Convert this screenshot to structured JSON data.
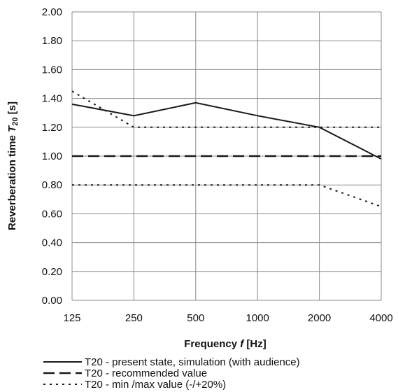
{
  "chart_data": {
    "type": "line",
    "categories": [
      "125",
      "250",
      "500",
      "1000",
      "2000",
      "4000"
    ],
    "ylim": [
      0,
      2.0
    ],
    "yticks": [
      "0.00",
      "0.20",
      "0.40",
      "0.60",
      "0.80",
      "1.00",
      "1.20",
      "1.40",
      "1.60",
      "1.80",
      "2.00"
    ],
    "grid": true,
    "legend_position": "bottom",
    "xlabel": {
      "prefix": "Frequency ",
      "var": "f",
      "suffix": " [Hz]"
    },
    "ylabel": {
      "prefix": "Reverberation time  ",
      "var": "T",
      "sub": "20",
      "suffix": " [s]"
    },
    "series": [
      {
        "name": "T20 - present state, simulation (with audience)",
        "style": "solid",
        "values": [
          1.36,
          1.28,
          1.37,
          1.28,
          1.2,
          0.98
        ]
      },
      {
        "name": "T20 - recommended value",
        "style": "dashed",
        "values": [
          1.0,
          1.0,
          1.0,
          1.0,
          1.0,
          1.0
        ]
      },
      {
        "name": "T20 - min /max value (-/+20%)",
        "style": "dotted",
        "segments": [
          [
            1.45,
            1.2,
            1.2,
            1.2,
            1.2,
            1.2
          ],
          [
            0.8,
            0.8,
            0.8,
            0.8,
            0.8,
            0.65
          ]
        ]
      }
    ]
  },
  "colors": {
    "line": "#1a1a1a",
    "grid": "#8c8c8c"
  }
}
